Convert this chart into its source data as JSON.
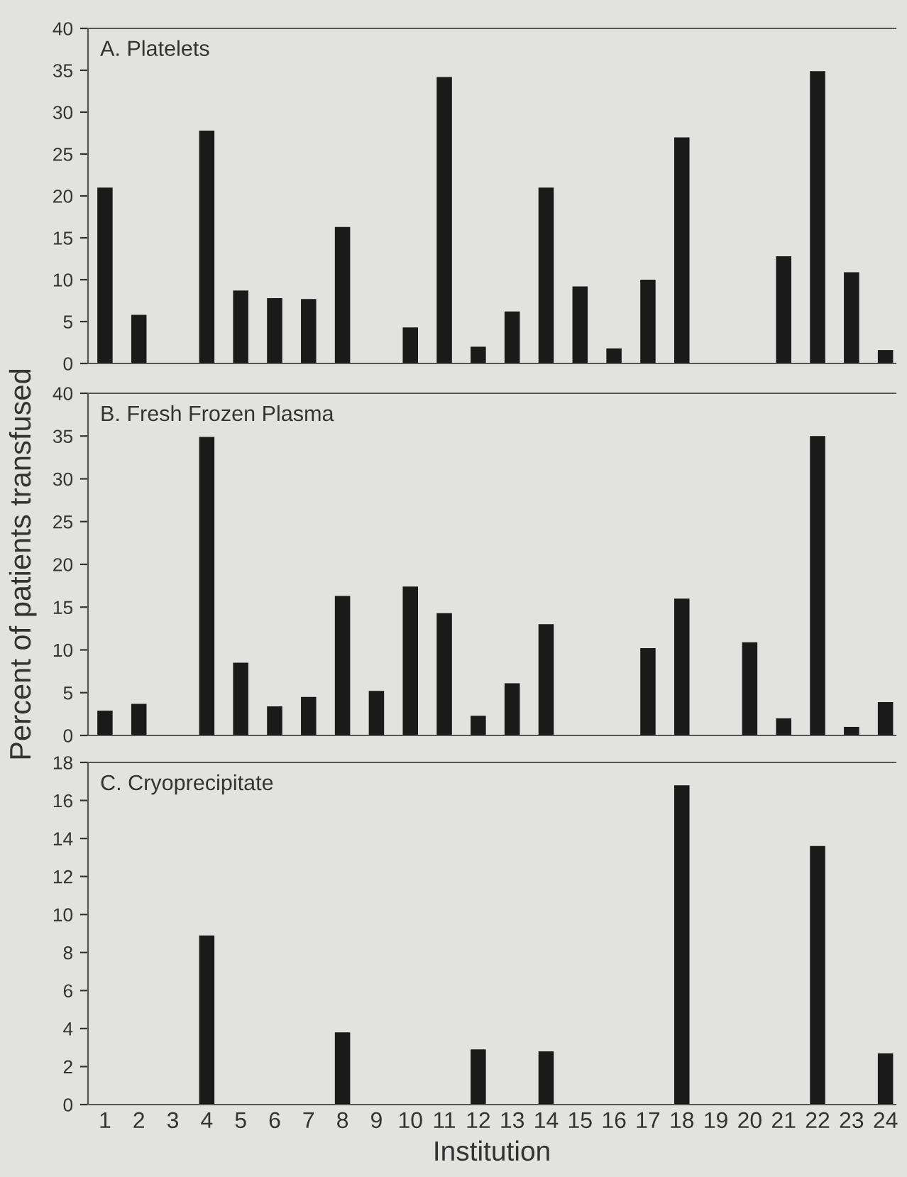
{
  "chart_data": [
    {
      "type": "bar",
      "title": "A. Platelets",
      "categories": [
        "1",
        "2",
        "3",
        "4",
        "5",
        "6",
        "7",
        "8",
        "9",
        "10",
        "11",
        "12",
        "13",
        "14",
        "15",
        "16",
        "17",
        "18",
        "19",
        "20",
        "21",
        "22",
        "23",
        "24"
      ],
      "values": [
        21,
        5.8,
        0,
        27.8,
        8.7,
        7.8,
        7.7,
        16.3,
        0,
        4.3,
        34.2,
        2,
        6.2,
        21,
        9.2,
        1.8,
        10,
        27,
        0,
        0,
        12.8,
        34.9,
        10.9,
        1.6
      ],
      "color": "#1a1a1a",
      "ylim": [
        0,
        40
      ],
      "yticks": [
        0,
        5,
        10,
        15,
        20,
        25,
        30,
        35,
        40
      ],
      "grid": false,
      "tick_labels": "y"
    },
    {
      "type": "bar",
      "title": "B. Fresh Frozen Plasma",
      "ylabel": "Percent of patients transfused",
      "categories": [
        "1",
        "2",
        "3",
        "4",
        "5",
        "6",
        "7",
        "8",
        "9",
        "10",
        "11",
        "12",
        "13",
        "14",
        "15",
        "16",
        "17",
        "18",
        "19",
        "20",
        "21",
        "22",
        "23",
        "24"
      ],
      "values": [
        2.9,
        3.7,
        0,
        34.9,
        8.5,
        3.4,
        4.5,
        16.3,
        5.2,
        17.4,
        14.3,
        2.3,
        6.1,
        13,
        0,
        0,
        10.2,
        16,
        0,
        10.9,
        2,
        35,
        1,
        3.9
      ],
      "color": "#1a1a1a",
      "ylim": [
        0,
        40
      ],
      "yticks": [
        0,
        5,
        10,
        15,
        20,
        25,
        30,
        35,
        40
      ],
      "grid": false,
      "tick_labels": "y"
    },
    {
      "type": "bar",
      "title": "C. Cryoprecipitate",
      "xlabel": "Institution",
      "categories": [
        "1",
        "2",
        "3",
        "4",
        "5",
        "6",
        "7",
        "8",
        "9",
        "10",
        "11",
        "12",
        "13",
        "14",
        "15",
        "16",
        "17",
        "18",
        "19",
        "20",
        "21",
        "22",
        "23",
        "24"
      ],
      "values": [
        0,
        0,
        0,
        8.9,
        0,
        0,
        0,
        3.8,
        0,
        0,
        0,
        2.9,
        0,
        2.8,
        0,
        0,
        0,
        16.8,
        0,
        0,
        0,
        13.6,
        0,
        2.7
      ],
      "color": "#1a1a1a",
      "ylim": [
        0,
        18
      ],
      "yticks": [
        0,
        2,
        4,
        6,
        8,
        10,
        12,
        14,
        16,
        18
      ],
      "grid": false
    }
  ]
}
